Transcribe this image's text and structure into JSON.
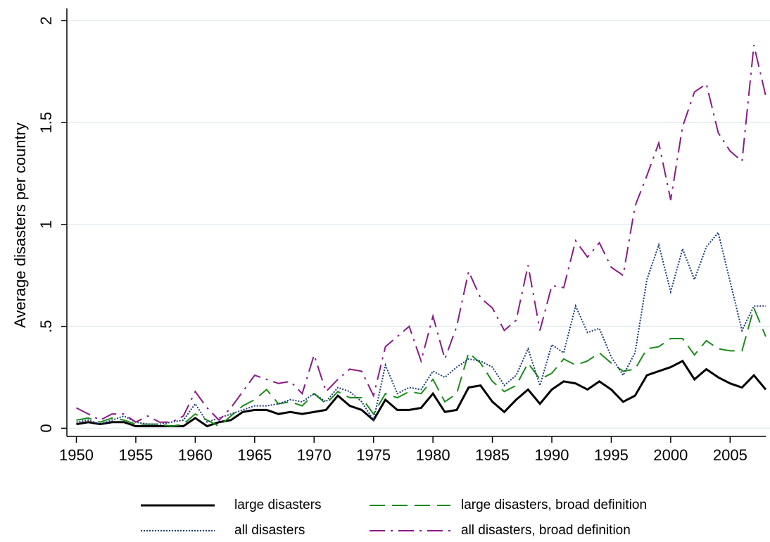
{
  "chart_data": {
    "type": "line",
    "y_label": "Average disasters per country",
    "x": [
      1950,
      1951,
      1952,
      1953,
      1954,
      1955,
      1956,
      1957,
      1958,
      1959,
      1960,
      1961,
      1962,
      1963,
      1964,
      1965,
      1966,
      1967,
      1968,
      1969,
      1970,
      1971,
      1972,
      1973,
      1974,
      1975,
      1976,
      1977,
      1978,
      1979,
      1980,
      1981,
      1982,
      1983,
      1984,
      1985,
      1986,
      1987,
      1988,
      1989,
      1990,
      1991,
      1992,
      1993,
      1994,
      1995,
      1996,
      1997,
      1998,
      1999,
      2000,
      2001,
      2002,
      2003,
      2004,
      2005,
      2006,
      2007,
      2008
    ],
    "series": [
      {
        "name": "large disasters",
        "color": "#000000",
        "line_style": "solid",
        "width": 3,
        "values": [
          0.02,
          0.03,
          0.02,
          0.03,
          0.03,
          0.01,
          0.01,
          0.01,
          0.01,
          0.01,
          0.05,
          0.01,
          0.03,
          0.04,
          0.08,
          0.09,
          0.09,
          0.07,
          0.08,
          0.07,
          0.08,
          0.09,
          0.16,
          0.11,
          0.09,
          0.04,
          0.14,
          0.09,
          0.09,
          0.1,
          0.17,
          0.08,
          0.09,
          0.2,
          0.21,
          0.13,
          0.08,
          0.14,
          0.19,
          0.12,
          0.19,
          0.23,
          0.22,
          0.19,
          0.23,
          0.19,
          0.13,
          0.16,
          0.26,
          0.28,
          0.3,
          0.33,
          0.24,
          0.29,
          0.25,
          0.22,
          0.2,
          0.26,
          0.19
        ]
      },
      {
        "name": "large disasters, broad definition",
        "color": "#1a8c1a",
        "line_style": "dashed",
        "width": 2,
        "values": [
          0.04,
          0.05,
          0.03,
          0.05,
          0.04,
          0.02,
          0.02,
          0.02,
          0.01,
          0.02,
          0.07,
          0.04,
          0.01,
          0.06,
          0.11,
          0.14,
          0.19,
          0.12,
          0.13,
          0.11,
          0.17,
          0.12,
          0.18,
          0.15,
          0.15,
          0.07,
          0.17,
          0.15,
          0.18,
          0.17,
          0.24,
          0.13,
          0.17,
          0.37,
          0.32,
          0.23,
          0.18,
          0.21,
          0.32,
          0.24,
          0.27,
          0.34,
          0.31,
          0.33,
          0.37,
          0.32,
          0.28,
          0.29,
          0.39,
          0.4,
          0.44,
          0.44,
          0.36,
          0.43,
          0.39,
          0.38,
          0.38,
          0.59,
          0.45
        ]
      },
      {
        "name": "all disasters",
        "color": "#1a3a7a",
        "line_style": "dotted",
        "width": 2,
        "values": [
          0.03,
          0.04,
          0.02,
          0.04,
          0.06,
          0.03,
          0.02,
          0.02,
          0.03,
          0.04,
          0.12,
          0.03,
          0.05,
          0.07,
          0.09,
          0.11,
          0.11,
          0.12,
          0.14,
          0.13,
          0.17,
          0.13,
          0.2,
          0.18,
          0.13,
          0.04,
          0.31,
          0.17,
          0.2,
          0.19,
          0.28,
          0.25,
          0.3,
          0.34,
          0.33,
          0.3,
          0.21,
          0.26,
          0.39,
          0.21,
          0.41,
          0.37,
          0.6,
          0.47,
          0.49,
          0.35,
          0.26,
          0.37,
          0.73,
          0.9,
          0.67,
          0.88,
          0.73,
          0.89,
          0.96,
          0.72,
          0.48,
          0.6,
          0.6
        ]
      },
      {
        "name": "all disasters, broad definition",
        "color": "#8b1a8b",
        "line_style": "dashdot",
        "width": 2,
        "values": [
          0.1,
          0.07,
          0.04,
          0.07,
          0.07,
          0.03,
          0.06,
          0.03,
          0.03,
          0.06,
          0.18,
          0.1,
          0.04,
          0.1,
          0.18,
          0.26,
          0.24,
          0.22,
          0.23,
          0.17,
          0.36,
          0.18,
          0.24,
          0.29,
          0.28,
          0.16,
          0.4,
          0.45,
          0.5,
          0.33,
          0.55,
          0.34,
          0.5,
          0.77,
          0.64,
          0.59,
          0.48,
          0.53,
          0.8,
          0.48,
          0.7,
          0.69,
          0.92,
          0.84,
          0.91,
          0.79,
          0.75,
          1.09,
          1.24,
          1.4,
          1.12,
          1.48,
          1.65,
          1.69,
          1.45,
          1.36,
          1.31,
          1.88,
          1.63
        ]
      }
    ],
    "xlim": [
      1949.2,
      2008
    ],
    "xticks": [
      1950,
      1955,
      1960,
      1965,
      1970,
      1975,
      1980,
      1985,
      1990,
      1995,
      2000,
      2005
    ],
    "ylim": [
      -0.04,
      2.06
    ],
    "yticks": [
      0,
      {
        "value": 0.5,
        "label": ".5"
      },
      1,
      1.5,
      2
    ],
    "grid": true,
    "legend": "bottom"
  }
}
